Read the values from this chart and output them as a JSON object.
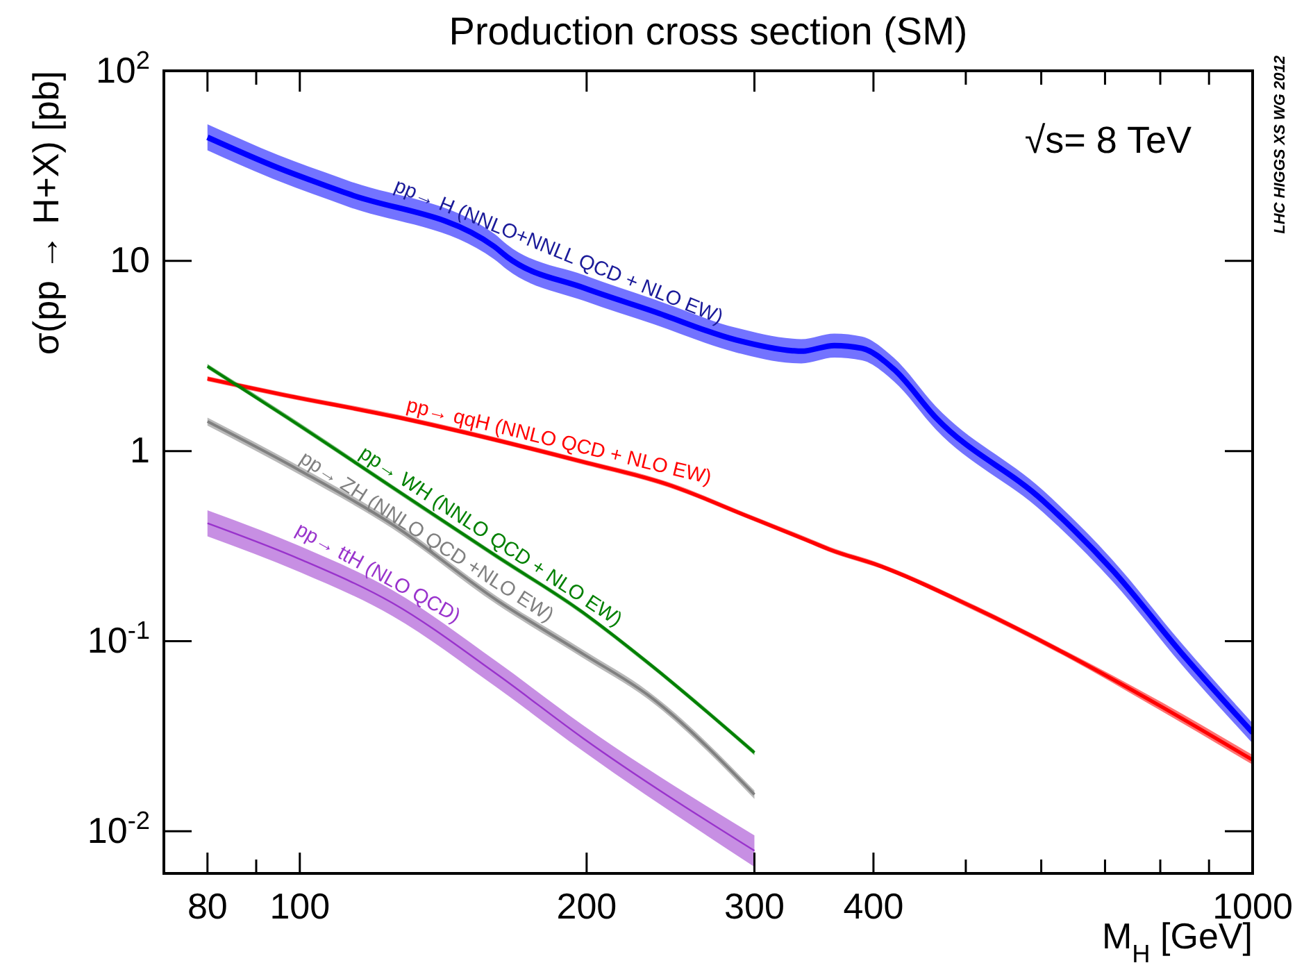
{
  "chart_data": {
    "type": "line",
    "title": "Production cross section (SM)",
    "xlabel": "M$_{H}$ [GeV]",
    "ylabel": "σ(pp → H+X) [pb]",
    "annotations": [
      "√s= 8 TeV",
      "LHC HIGGS XS WG 2012"
    ],
    "log": "xy",
    "xlim": [
      72,
      1000
    ],
    "ylim": [
      0.006,
      100
    ],
    "xticks": [
      80,
      {
        "value": 90,
        "label": null
      },
      100,
      200,
      300,
      400,
      {
        "value": 500,
        "label": null
      },
      {
        "value": 600,
        "label": null
      },
      {
        "value": 700,
        "label": null
      },
      {
        "value": 800,
        "label": null
      },
      {
        "value": 900,
        "label": null
      },
      1000
    ],
    "yticks": [
      {
        "value": 0.01,
        "label": "10$^{-2}$"
      },
      {
        "value": 0.1,
        "label": "10$^{-1}$"
      },
      1,
      10,
      {
        "value": 100,
        "label": "10$^{2}$"
      }
    ],
    "series": [
      {
        "name": "pp→ H (NNLO+NNLL QCD + NLO EW)",
        "color": "#0000ff",
        "x": [
          80,
          95,
          112,
          160,
          165,
          199,
          235,
          287,
          329,
          336,
          364,
          389,
          420,
          465,
          603,
          713,
          843,
          1000
        ],
        "values": [
          44.7,
          30.8,
          22.7,
          11.9,
          10.5,
          7.19,
          5.43,
          3.84,
          3.37,
          3.35,
          3.59,
          3.47,
          2.7,
          1.5,
          0.546,
          0.236,
          0.086,
          0.033
        ],
        "upper": [
          52.3,
          36.0,
          26.6,
          13.9,
          12.2,
          8.4,
          6.3,
          4.45,
          3.9,
          3.88,
          4.15,
          4.0,
          3.1,
          1.72,
          0.62,
          0.267,
          0.097,
          0.037
        ],
        "lower": [
          38.2,
          26.3,
          19.4,
          10.2,
          9.0,
          6.15,
          4.65,
          3.3,
          2.9,
          2.89,
          3.1,
          3.0,
          2.33,
          1.3,
          0.475,
          0.206,
          0.075,
          0.029
        ]
      },
      {
        "name": "pp→ qqH (NNLO QCD + NLO EW)",
        "color": "#ff0000",
        "x": [
          80,
          95,
          127,
          198,
          243,
          297,
          340,
          360,
          406,
          510,
          636,
          795,
          1000
        ],
        "values": [
          2.4,
          2.0,
          1.5,
          0.878,
          0.668,
          0.448,
          0.341,
          0.303,
          0.249,
          0.15,
          0.086,
          0.0464,
          0.0237
        ],
        "upper": [
          2.47,
          2.06,
          1.55,
          0.905,
          0.69,
          0.462,
          0.352,
          0.313,
          0.257,
          0.155,
          0.089,
          0.049,
          0.0252
        ],
        "lower": [
          2.33,
          1.94,
          1.46,
          0.852,
          0.648,
          0.435,
          0.331,
          0.294,
          0.242,
          0.145,
          0.083,
          0.044,
          0.0224
        ]
      },
      {
        "name": "pp→ WH (NNLO QCD + NLO EW)",
        "color": "#008000",
        "x": [
          80,
          97,
          125,
          161,
          198,
          232,
          300
        ],
        "values": [
          2.79,
          1.5,
          0.646,
          0.279,
          0.142,
          0.0769,
          0.0259
        ],
        "upper": [
          2.87,
          1.55,
          0.665,
          0.287,
          0.146,
          0.0792,
          0.0267
        ],
        "lower": [
          2.71,
          1.46,
          0.627,
          0.271,
          0.138,
          0.0747,
          0.0251
        ]
      },
      {
        "name": "pp→ ZH (NNLO QCD +NLO EW)",
        "color": "#808080",
        "x": [
          80,
          100,
          125,
          161,
          198,
          232,
          300
        ],
        "values": [
          1.43,
          0.79,
          0.412,
          0.164,
          0.086,
          0.052,
          0.0156
        ],
        "upper": [
          1.5,
          0.83,
          0.433,
          0.172,
          0.0903,
          0.0546,
          0.0164
        ],
        "lower": [
          1.36,
          0.75,
          0.392,
          0.156,
          0.0819,
          0.0495,
          0.0148
        ]
      },
      {
        "name": "pp→ ttH (NLO QCD)",
        "color": "#9933cc",
        "x": [
          80,
          100,
          125,
          161,
          198,
          300
        ],
        "values": [
          0.417,
          0.27,
          0.159,
          0.067,
          0.031,
          0.0079
        ],
        "upper": [
          0.488,
          0.316,
          0.186,
          0.078,
          0.0363,
          0.0095
        ],
        "lower": [
          0.356,
          0.231,
          0.136,
          0.057,
          0.0265,
          0.0065
        ]
      }
    ]
  }
}
